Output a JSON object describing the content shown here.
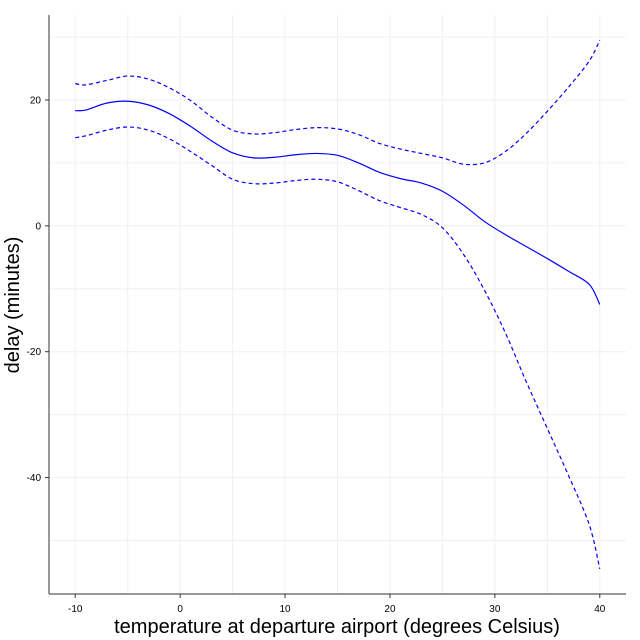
{
  "chart_data": {
    "type": "line",
    "xlabel": "temperature at departure airport (degrees Celsius)",
    "ylabel": "delay (minutes)",
    "xlim": [
      -12.5,
      42.5
    ],
    "ylim": [
      -58.5,
      33.5
    ],
    "xticks": [
      -10,
      0,
      10,
      20,
      30,
      40
    ],
    "yticks": [
      -40,
      -20,
      0,
      20
    ],
    "x_tick_labels": [
      "-10",
      "0",
      "10",
      "20",
      "30",
      "40"
    ],
    "y_tick_labels": [
      "-40",
      "-20",
      "0",
      "20"
    ],
    "grid": true,
    "series": [
      {
        "role": "fit",
        "color": "#0000ff",
        "dash": "solid",
        "points": [
          [
            -10,
            18.3
          ],
          [
            -9,
            18.4
          ],
          [
            -7,
            19.5
          ],
          [
            -5,
            19.8
          ],
          [
            -3,
            19.2
          ],
          [
            -1,
            17.8
          ],
          [
            1,
            15.8
          ],
          [
            3,
            13.5
          ],
          [
            5,
            11.6
          ],
          [
            7,
            10.8
          ],
          [
            9,
            10.9
          ],
          [
            11,
            11.3
          ],
          [
            13,
            11.5
          ],
          [
            15,
            11.2
          ],
          [
            17,
            10.0
          ],
          [
            19,
            8.5
          ],
          [
            21,
            7.5
          ],
          [
            23,
            6.8
          ],
          [
            25,
            5.5
          ],
          [
            27,
            3.3
          ],
          [
            29,
            0.7
          ],
          [
            31,
            -1.4
          ],
          [
            33,
            -3.3
          ],
          [
            35,
            -5.2
          ],
          [
            37,
            -7.2
          ],
          [
            39,
            -9.3
          ],
          [
            40,
            -12.5
          ]
        ]
      },
      {
        "role": "upper-bound",
        "color": "#0000ff",
        "dash": "dashed",
        "points": [
          [
            -10,
            22.6
          ],
          [
            -9,
            22.4
          ],
          [
            -7,
            23.1
          ],
          [
            -5,
            23.8
          ],
          [
            -3,
            23.3
          ],
          [
            -1,
            21.9
          ],
          [
            1,
            19.9
          ],
          [
            3,
            17.3
          ],
          [
            5,
            15.2
          ],
          [
            7,
            14.6
          ],
          [
            9,
            14.8
          ],
          [
            11,
            15.3
          ],
          [
            13,
            15.6
          ],
          [
            15,
            15.4
          ],
          [
            17,
            14.5
          ],
          [
            19,
            13.1
          ],
          [
            21,
            12.2
          ],
          [
            23,
            11.5
          ],
          [
            25,
            10.8
          ],
          [
            27,
            9.8
          ],
          [
            29,
            10.0
          ],
          [
            31,
            11.8
          ],
          [
            33,
            14.7
          ],
          [
            35,
            18.2
          ],
          [
            37,
            22.0
          ],
          [
            39,
            26.2
          ],
          [
            40,
            29.5
          ]
        ]
      },
      {
        "role": "lower-bound",
        "color": "#0000ff",
        "dash": "dashed",
        "points": [
          [
            -10,
            14.0
          ],
          [
            -9,
            14.3
          ],
          [
            -7,
            15.2
          ],
          [
            -5,
            15.7
          ],
          [
            -3,
            15.2
          ],
          [
            -1,
            13.8
          ],
          [
            1,
            11.8
          ],
          [
            3,
            9.6
          ],
          [
            5,
            7.4
          ],
          [
            7,
            6.7
          ],
          [
            9,
            6.8
          ],
          [
            11,
            7.2
          ],
          [
            13,
            7.4
          ],
          [
            15,
            7.0
          ],
          [
            17,
            5.6
          ],
          [
            19,
            4.0
          ],
          [
            21,
            2.9
          ],
          [
            23,
            1.8
          ],
          [
            25,
            -0.3
          ],
          [
            27,
            -4.5
          ],
          [
            29,
            -10.2
          ],
          [
            31,
            -17.0
          ],
          [
            33,
            -24.8
          ],
          [
            35,
            -32.2
          ],
          [
            37,
            -39.6
          ],
          [
            39,
            -47.5
          ],
          [
            40,
            -54.5
          ]
        ]
      }
    ]
  }
}
